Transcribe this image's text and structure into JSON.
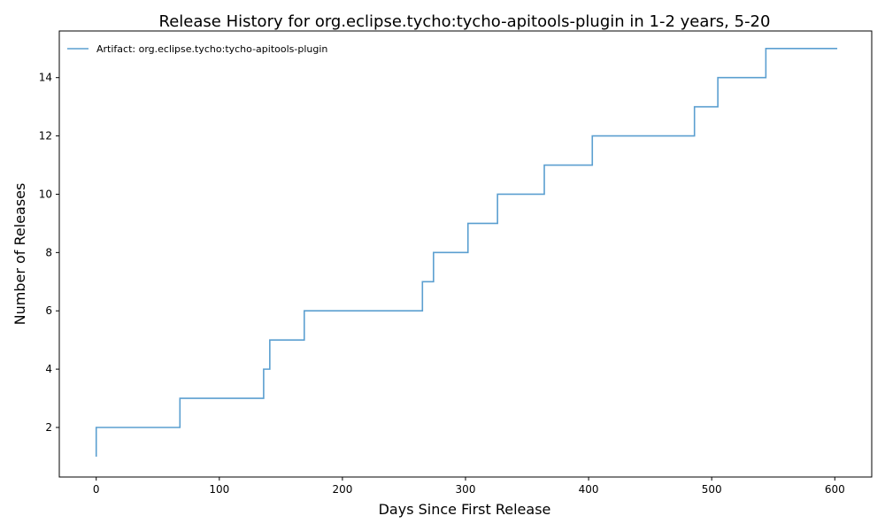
{
  "chart_data": {
    "type": "line",
    "title": "Release History for org.eclipse.tycho:tycho-apitools-plugin in 1-2 years, 5-20",
    "xlabel": "Days Since First Release",
    "ylabel": "Number of Releases",
    "xlim": [
      -30,
      630
    ],
    "ylim": [
      0.3,
      15.6
    ],
    "xticks": [
      0,
      100,
      200,
      300,
      400,
      500,
      600
    ],
    "yticks": [
      2,
      4,
      6,
      8,
      10,
      12,
      14
    ],
    "step": "post",
    "grid": false,
    "legend_position": "top-left",
    "color": "#5b9fd0",
    "series": [
      {
        "name": "Artifact: org.eclipse.tycho:tycho-apitools-plugin",
        "x": [
          0,
          0,
          68,
          136,
          138,
          141,
          169,
          265,
          274,
          302,
          326,
          364,
          403,
          486,
          505,
          544,
          602
        ],
        "y": [
          1,
          2,
          3,
          4,
          4,
          5,
          6,
          7,
          8,
          9,
          10,
          11,
          12,
          13,
          14,
          15,
          15
        ]
      }
    ]
  }
}
